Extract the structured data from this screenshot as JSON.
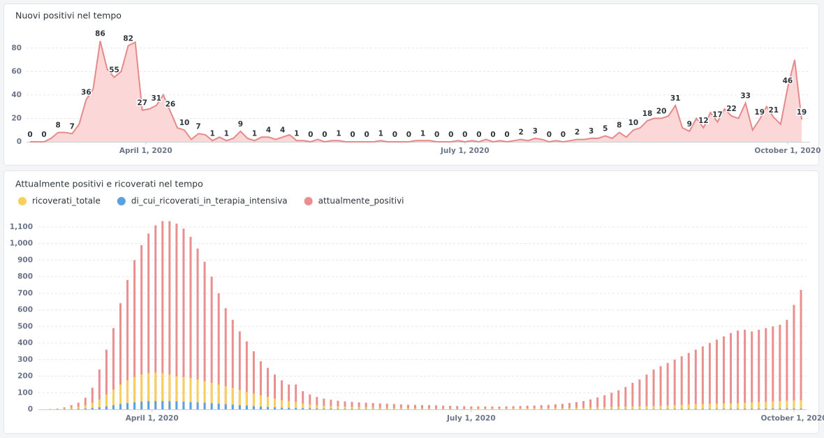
{
  "chart_data": [
    {
      "type": "area",
      "title": "Nuovi positivi nel tempo",
      "x": [
        "2020-02-28",
        "2020-03-01",
        "2020-03-03",
        "2020-03-05",
        "2020-03-07",
        "2020-03-09",
        "2020-03-11",
        "2020-03-13",
        "2020-03-15",
        "2020-03-17",
        "2020-03-19",
        "2020-03-21",
        "2020-03-23",
        "2020-03-25",
        "2020-03-27",
        "2020-03-29",
        "2020-03-31",
        "2020-04-02",
        "2020-04-04",
        "2020-04-06",
        "2020-04-08",
        "2020-04-10",
        "2020-04-12",
        "2020-04-14",
        "2020-04-16",
        "2020-04-18",
        "2020-04-20",
        "2020-04-22",
        "2020-04-24",
        "2020-04-26",
        "2020-04-28",
        "2020-04-30",
        "2020-05-02",
        "2020-05-04",
        "2020-05-06",
        "2020-05-08",
        "2020-05-10",
        "2020-05-12",
        "2020-05-14",
        "2020-05-16",
        "2020-05-18",
        "2020-05-20",
        "2020-05-22",
        "2020-05-24",
        "2020-05-26",
        "2020-05-28",
        "2020-05-30",
        "2020-06-01",
        "2020-06-03",
        "2020-06-05",
        "2020-06-07",
        "2020-06-09",
        "2020-06-11",
        "2020-06-13",
        "2020-06-15",
        "2020-06-17",
        "2020-06-19",
        "2020-06-21",
        "2020-06-23",
        "2020-06-25",
        "2020-06-27",
        "2020-06-29",
        "2020-07-01",
        "2020-07-03",
        "2020-07-05",
        "2020-07-07",
        "2020-07-09",
        "2020-07-11",
        "2020-07-13",
        "2020-07-15",
        "2020-07-17",
        "2020-07-19",
        "2020-07-21",
        "2020-07-23",
        "2020-07-25",
        "2020-07-27",
        "2020-07-29",
        "2020-07-31",
        "2020-08-02",
        "2020-08-04",
        "2020-08-06",
        "2020-08-08",
        "2020-08-10",
        "2020-08-12",
        "2020-08-14",
        "2020-08-16",
        "2020-08-18",
        "2020-08-20",
        "2020-08-22",
        "2020-08-24",
        "2020-08-26",
        "2020-08-28",
        "2020-08-30",
        "2020-09-01",
        "2020-09-03",
        "2020-09-05",
        "2020-09-07",
        "2020-09-09",
        "2020-09-11",
        "2020-09-13",
        "2020-09-15",
        "2020-09-17",
        "2020-09-19",
        "2020-09-21",
        "2020-09-23",
        "2020-09-25",
        "2020-09-27",
        "2020-09-29",
        "2020-10-01",
        "2020-10-03",
        "2020-10-05"
      ],
      "values": [
        0,
        0,
        0,
        3,
        8,
        8,
        7,
        15,
        36,
        45,
        86,
        62,
        55,
        60,
        82,
        85,
        27,
        28,
        31,
        40,
        26,
        12,
        10,
        2,
        7,
        6,
        1,
        4,
        1,
        3,
        9,
        3,
        1,
        4,
        4,
        2,
        4,
        6,
        1,
        1,
        0,
        2,
        0,
        1,
        1,
        0,
        0,
        0,
        0,
        0,
        1,
        0,
        0,
        0,
        0,
        1,
        1,
        1,
        0,
        0,
        0,
        1,
        0,
        1,
        0,
        2,
        0,
        1,
        0,
        1,
        2,
        1,
        3,
        2,
        0,
        1,
        0,
        1,
        2,
        2,
        3,
        3,
        5,
        3,
        8,
        4,
        10,
        12,
        18,
        20,
        20,
        22,
        31,
        12,
        9,
        20,
        12,
        25,
        17,
        28,
        22,
        20,
        33,
        10,
        19,
        30,
        21,
        15,
        46,
        70,
        19
      ],
      "color": "#e58a8a",
      "fill": "#fbd7d7",
      "xlim": [
        "2020-02-28",
        "2020-10-05"
      ],
      "xticks": [
        {
          "value": "2020-04-01",
          "label": "April 1, 2020"
        },
        {
          "value": "2020-07-01",
          "label": "July 1, 2020"
        },
        {
          "value": "2020-10-01",
          "label": "October 1, 2020"
        }
      ],
      "ylim": [
        0,
        90
      ],
      "yticks": [
        0,
        20,
        40,
        60,
        80
      ],
      "grid": true
    },
    {
      "type": "bar",
      "title": "Attualmente positivi e ricoverati nel tempo",
      "legend": "top-left",
      "x": [
        "2020-03-01",
        "2020-03-03",
        "2020-03-05",
        "2020-03-07",
        "2020-03-09",
        "2020-03-11",
        "2020-03-13",
        "2020-03-15",
        "2020-03-17",
        "2020-03-19",
        "2020-03-21",
        "2020-03-23",
        "2020-03-25",
        "2020-03-27",
        "2020-03-29",
        "2020-03-31",
        "2020-04-02",
        "2020-04-04",
        "2020-04-06",
        "2020-04-08",
        "2020-04-10",
        "2020-04-12",
        "2020-04-14",
        "2020-04-16",
        "2020-04-18",
        "2020-04-20",
        "2020-04-22",
        "2020-04-24",
        "2020-04-26",
        "2020-04-28",
        "2020-04-30",
        "2020-05-02",
        "2020-05-04",
        "2020-05-06",
        "2020-05-08",
        "2020-05-10",
        "2020-05-12",
        "2020-05-14",
        "2020-05-16",
        "2020-05-18",
        "2020-05-20",
        "2020-05-22",
        "2020-05-24",
        "2020-05-26",
        "2020-05-28",
        "2020-05-30",
        "2020-06-01",
        "2020-06-03",
        "2020-06-05",
        "2020-06-07",
        "2020-06-09",
        "2020-06-11",
        "2020-06-13",
        "2020-06-15",
        "2020-06-17",
        "2020-06-19",
        "2020-06-21",
        "2020-06-23",
        "2020-06-25",
        "2020-06-27",
        "2020-06-29",
        "2020-07-01",
        "2020-07-03",
        "2020-07-05",
        "2020-07-07",
        "2020-07-09",
        "2020-07-11",
        "2020-07-13",
        "2020-07-15",
        "2020-07-17",
        "2020-07-19",
        "2020-07-21",
        "2020-07-23",
        "2020-07-25",
        "2020-07-27",
        "2020-07-29",
        "2020-07-31",
        "2020-08-02",
        "2020-08-04",
        "2020-08-06",
        "2020-08-08",
        "2020-08-10",
        "2020-08-12",
        "2020-08-14",
        "2020-08-16",
        "2020-08-18",
        "2020-08-20",
        "2020-08-22",
        "2020-08-24",
        "2020-08-26",
        "2020-08-28",
        "2020-08-30",
        "2020-09-01",
        "2020-09-03",
        "2020-09-05",
        "2020-09-07",
        "2020-09-09",
        "2020-09-11",
        "2020-09-13",
        "2020-09-15",
        "2020-09-17",
        "2020-09-19",
        "2020-09-21",
        "2020-09-23",
        "2020-09-25",
        "2020-09-27",
        "2020-09-29",
        "2020-10-01",
        "2020-10-03"
      ],
      "series": [
        {
          "name": "ricoverati_totale",
          "color": "#f6cf5c",
          "values": [
            0,
            1,
            3,
            5,
            10,
            15,
            25,
            40,
            60,
            90,
            120,
            150,
            175,
            195,
            210,
            220,
            222,
            218,
            210,
            200,
            195,
            190,
            180,
            170,
            160,
            150,
            140,
            130,
            118,
            105,
            95,
            85,
            75,
            65,
            55,
            50,
            45,
            35,
            30,
            25,
            22,
            20,
            18,
            16,
            14,
            13,
            12,
            11,
            10,
            9,
            8,
            8,
            7,
            7,
            6,
            6,
            5,
            5,
            5,
            4,
            4,
            4,
            4,
            4,
            4,
            4,
            5,
            5,
            5,
            6,
            6,
            7,
            7,
            8,
            8,
            9,
            10,
            10,
            11,
            12,
            13,
            14,
            15,
            16,
            17,
            18,
            19,
            20,
            22,
            24,
            26,
            28,
            30,
            32,
            33,
            34,
            35,
            36,
            37,
            38,
            40,
            42,
            44,
            46,
            48,
            50,
            52,
            54,
            55
          ]
        },
        {
          "name": "di_cui_ricoverati_in_terapia_intensiva",
          "color": "#5aa1e0",
          "values": [
            0,
            0,
            1,
            1,
            2,
            3,
            5,
            8,
            12,
            18,
            25,
            32,
            38,
            43,
            47,
            50,
            50,
            50,
            49,
            48,
            46,
            44,
            42,
            40,
            37,
            34,
            31,
            28,
            25,
            22,
            19,
            16,
            14,
            12,
            10,
            9,
            8,
            7,
            6,
            5,
            4,
            4,
            3,
            3,
            3,
            2,
            2,
            2,
            2,
            2,
            1,
            1,
            1,
            1,
            1,
            1,
            1,
            1,
            1,
            1,
            1,
            0,
            0,
            0,
            0,
            0,
            0,
            0,
            0,
            0,
            0,
            1,
            1,
            1,
            1,
            1,
            1,
            1,
            1,
            1,
            1,
            2,
            2,
            2,
            2,
            2,
            2,
            2,
            2,
            3,
            3,
            3,
            3,
            3,
            3,
            3,
            3,
            4,
            4,
            4,
            4,
            4,
            4,
            5,
            5,
            5,
            5,
            5,
            5
          ]
        },
        {
          "name": "attualmente_positivi",
          "color": "#ea8e8e",
          "values": [
            0,
            2,
            5,
            12,
            25,
            40,
            70,
            130,
            240,
            360,
            490,
            640,
            780,
            900,
            990,
            1060,
            1110,
            1135,
            1135,
            1120,
            1090,
            1040,
            970,
            890,
            800,
            700,
            610,
            540,
            470,
            410,
            350,
            290,
            250,
            210,
            175,
            150,
            150,
            110,
            90,
            75,
            65,
            58,
            52,
            48,
            45,
            42,
            40,
            38,
            36,
            34,
            32,
            30,
            28,
            27,
            26,
            25,
            24,
            22,
            21,
            20,
            19,
            18,
            18,
            17,
            17,
            17,
            18,
            19,
            20,
            22,
            23,
            25,
            27,
            30,
            33,
            38,
            44,
            50,
            60,
            72,
            85,
            100,
            115,
            135,
            160,
            180,
            210,
            240,
            260,
            280,
            300,
            320,
            340,
            360,
            380,
            400,
            420,
            440,
            460,
            475,
            480,
            470,
            480,
            490,
            500,
            510,
            540,
            630,
            720
          ]
        }
      ],
      "xlim": [
        "2020-03-01",
        "2020-10-03"
      ],
      "xticks": [
        {
          "value": "2020-04-01",
          "label": "April 1, 2020"
        },
        {
          "value": "2020-07-01",
          "label": "July 1, 2020"
        },
        {
          "value": "2020-10-01",
          "label": "October 1, 2020"
        }
      ],
      "ylim": [
        0,
        1150
      ],
      "yticks": [
        0,
        100,
        200,
        300,
        400,
        500,
        600,
        700,
        800,
        900,
        {
          "value": 1000,
          "label": "1,000"
        },
        {
          "value": 1100,
          "label": "1,100"
        }
      ],
      "grid": true
    }
  ]
}
